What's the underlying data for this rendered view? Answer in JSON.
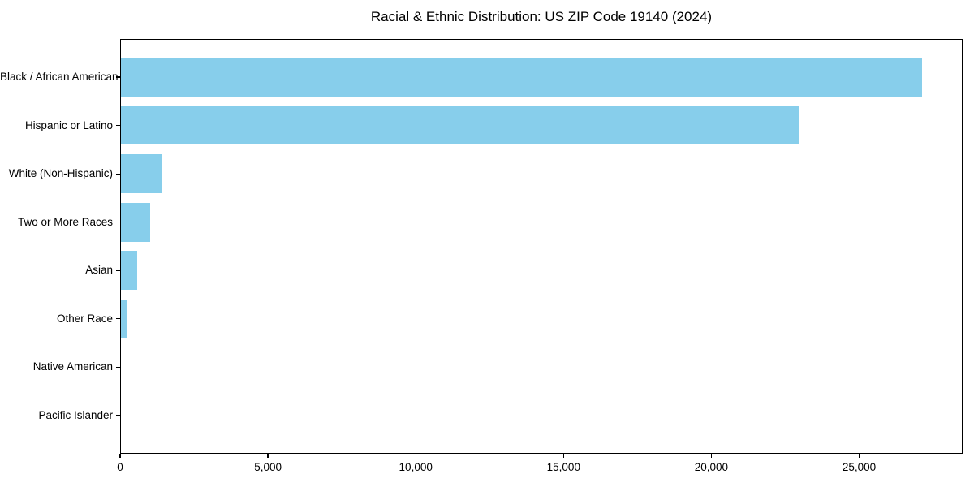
{
  "page": {
    "background": "#ffffff"
  },
  "colors": {
    "bar": "#87CEEB",
    "axis": "#000000",
    "text": "#000000",
    "background": "#ffffff"
  },
  "chart_data": {
    "type": "bar",
    "orientation": "horizontal",
    "title": "Racial & Ethnic Distribution: US ZIP Code 19140 (2024)",
    "categories": [
      "Black / African American",
      "Hispanic or Latino",
      "White (Non-Hispanic)",
      "Two or More Races",
      "Asian",
      "Other Race",
      "Native American",
      "Pacific Islander"
    ],
    "values": [
      27130,
      22990,
      1410,
      1010,
      580,
      260,
      35,
      10
    ],
    "xlabel": "",
    "ylabel": "",
    "xlim": [
      0,
      28500
    ],
    "xticks": [
      0,
      5000,
      10000,
      15000,
      20000,
      25000
    ],
    "xtick_labels": [
      "0",
      "5,000",
      "10,000",
      "15,000",
      "20,000",
      "25,000"
    ],
    "grid": false,
    "legend": null,
    "bar_color": "#87CEEB"
  }
}
